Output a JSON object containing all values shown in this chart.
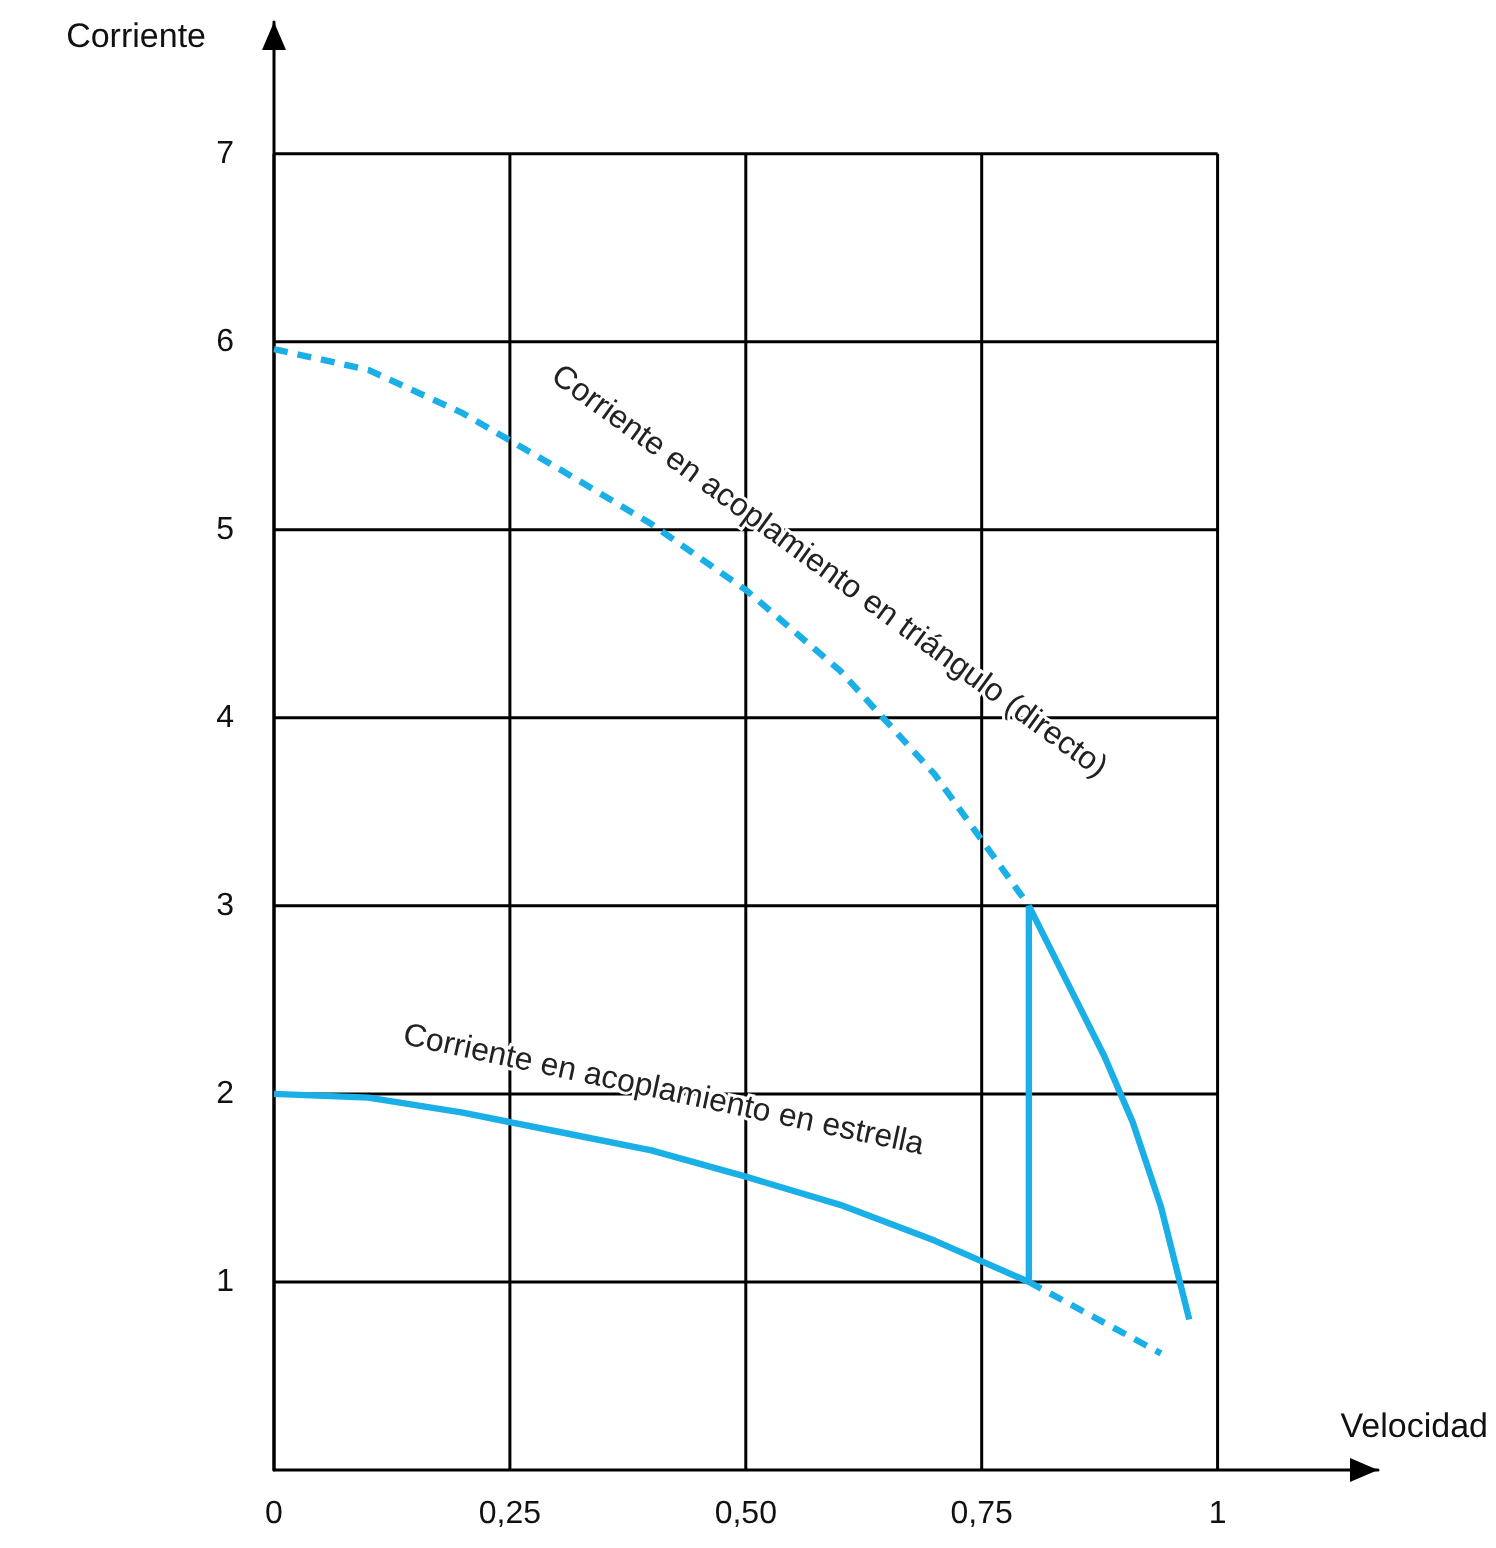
{
  "chart_data": {
    "type": "line",
    "xlabel": "Velocidad",
    "ylabel": "Corriente",
    "xlim": [
      0,
      1.17
    ],
    "ylim": [
      0,
      7.7
    ],
    "xticks": [
      {
        "value": 0,
        "label": "0"
      },
      {
        "value": 0.25,
        "label": "0,25"
      },
      {
        "value": 0.5,
        "label": "0,50"
      },
      {
        "value": 0.75,
        "label": "0,75"
      },
      {
        "value": 1,
        "label": "1"
      }
    ],
    "yticks": [
      1,
      2,
      3,
      4,
      5,
      6,
      7
    ],
    "grid": true,
    "marker": "none",
    "series": [
      {
        "color": "#1aafe6",
        "line_style": "dashed",
        "x": [
          0,
          0.1,
          0.2,
          0.3,
          0.4,
          0.5,
          0.6,
          0.7,
          0.75,
          0.8
        ],
        "values": [
          5.96,
          5.85,
          5.62,
          5.33,
          5.03,
          4.68,
          4.25,
          3.7,
          3.35,
          3.0
        ]
      },
      {
        "color": "#1aafe6",
        "line_style": "solid",
        "x": [
          0.8,
          0.84,
          0.88,
          0.91,
          0.94,
          0.97
        ],
        "values": [
          3.0,
          2.6,
          2.2,
          1.85,
          1.4,
          0.8
        ]
      },
      {
        "color": "#1aafe6",
        "line_style": "solid",
        "x": [
          0,
          0.1,
          0.2,
          0.3,
          0.4,
          0.5,
          0.6,
          0.7,
          0.8
        ],
        "values": [
          2.0,
          1.98,
          1.9,
          1.8,
          1.7,
          1.56,
          1.41,
          1.22,
          1.0
        ]
      },
      {
        "color": "#1aafe6",
        "line_style": "dashed",
        "x": [
          0.8,
          0.94
        ],
        "values": [
          1.0,
          0.62
        ]
      },
      {
        "color": "#1aafe6",
        "line_style": "solid",
        "x": [
          0.8,
          0.8
        ],
        "values": [
          1.0,
          3.0
        ]
      }
    ],
    "annotations": [
      {
        "text": "Corriente en acoplamiento en triángulo (directo)",
        "x": 0.55,
        "y": 4.5
      },
      {
        "text": "Corriente en acoplamiento en estrella",
        "x": 0.4,
        "y": 1.7
      }
    ]
  }
}
